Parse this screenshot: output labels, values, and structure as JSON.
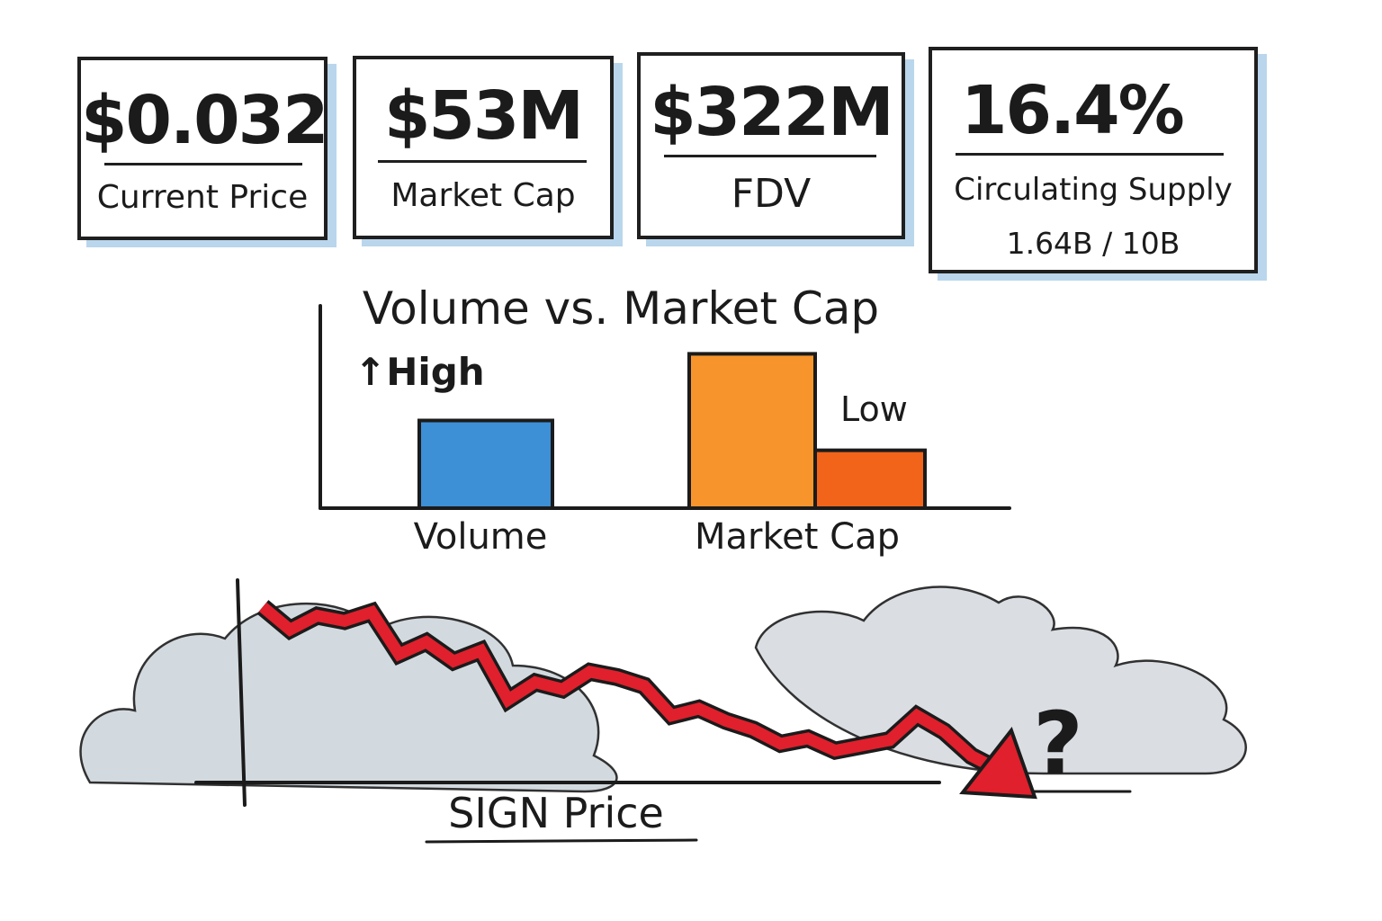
{
  "stats": [
    {
      "value": "$0.032",
      "label": "Current Price",
      "sub": ""
    },
    {
      "value": "$53M",
      "label": "Market Cap",
      "sub": ""
    },
    {
      "value": "$322M",
      "label": "FDV",
      "sub": ""
    },
    {
      "value": "16.4%",
      "label": "Circulating Supply",
      "sub": "1.64B / 10B"
    }
  ],
  "chart_data": [
    {
      "type": "bar",
      "title": "Volume vs. Market Cap",
      "categories": [
        "Volume",
        "Market Cap"
      ],
      "bars": [
        {
          "category": "Volume",
          "value": 0.5,
          "color": "#3d8fd6"
        },
        {
          "category": "Market Cap",
          "value": 0.88,
          "color": "#f7952c"
        },
        {
          "category": "Market Cap",
          "value": 0.33,
          "color": "#f26419"
        }
      ],
      "annotations": [
        "↑High",
        "Low"
      ],
      "ylim": [
        0,
        1
      ],
      "notes": "illustrative sketch; values relative, no axis scale shown"
    },
    {
      "type": "line",
      "title": "",
      "xlabel": "SIGN Price",
      "annotation": "?",
      "line_color": "#e0202c",
      "trend": "declining",
      "x": [
        0,
        1,
        2,
        3,
        4,
        5,
        6,
        7,
        8,
        9,
        10,
        11,
        12,
        13,
        14,
        15,
        16,
        17,
        18,
        19,
        20,
        21,
        22,
        23,
        24,
        25,
        26,
        27
      ],
      "y": [
        0.95,
        0.82,
        0.9,
        0.87,
        0.92,
        0.68,
        0.75,
        0.64,
        0.7,
        0.42,
        0.52,
        0.48,
        0.58,
        0.55,
        0.5,
        0.33,
        0.37,
        0.3,
        0.25,
        0.17,
        0.2,
        0.13,
        0.16,
        0.19,
        0.33,
        0.24,
        0.1,
        0.02
      ],
      "ylim": [
        0,
        1
      ]
    }
  ]
}
